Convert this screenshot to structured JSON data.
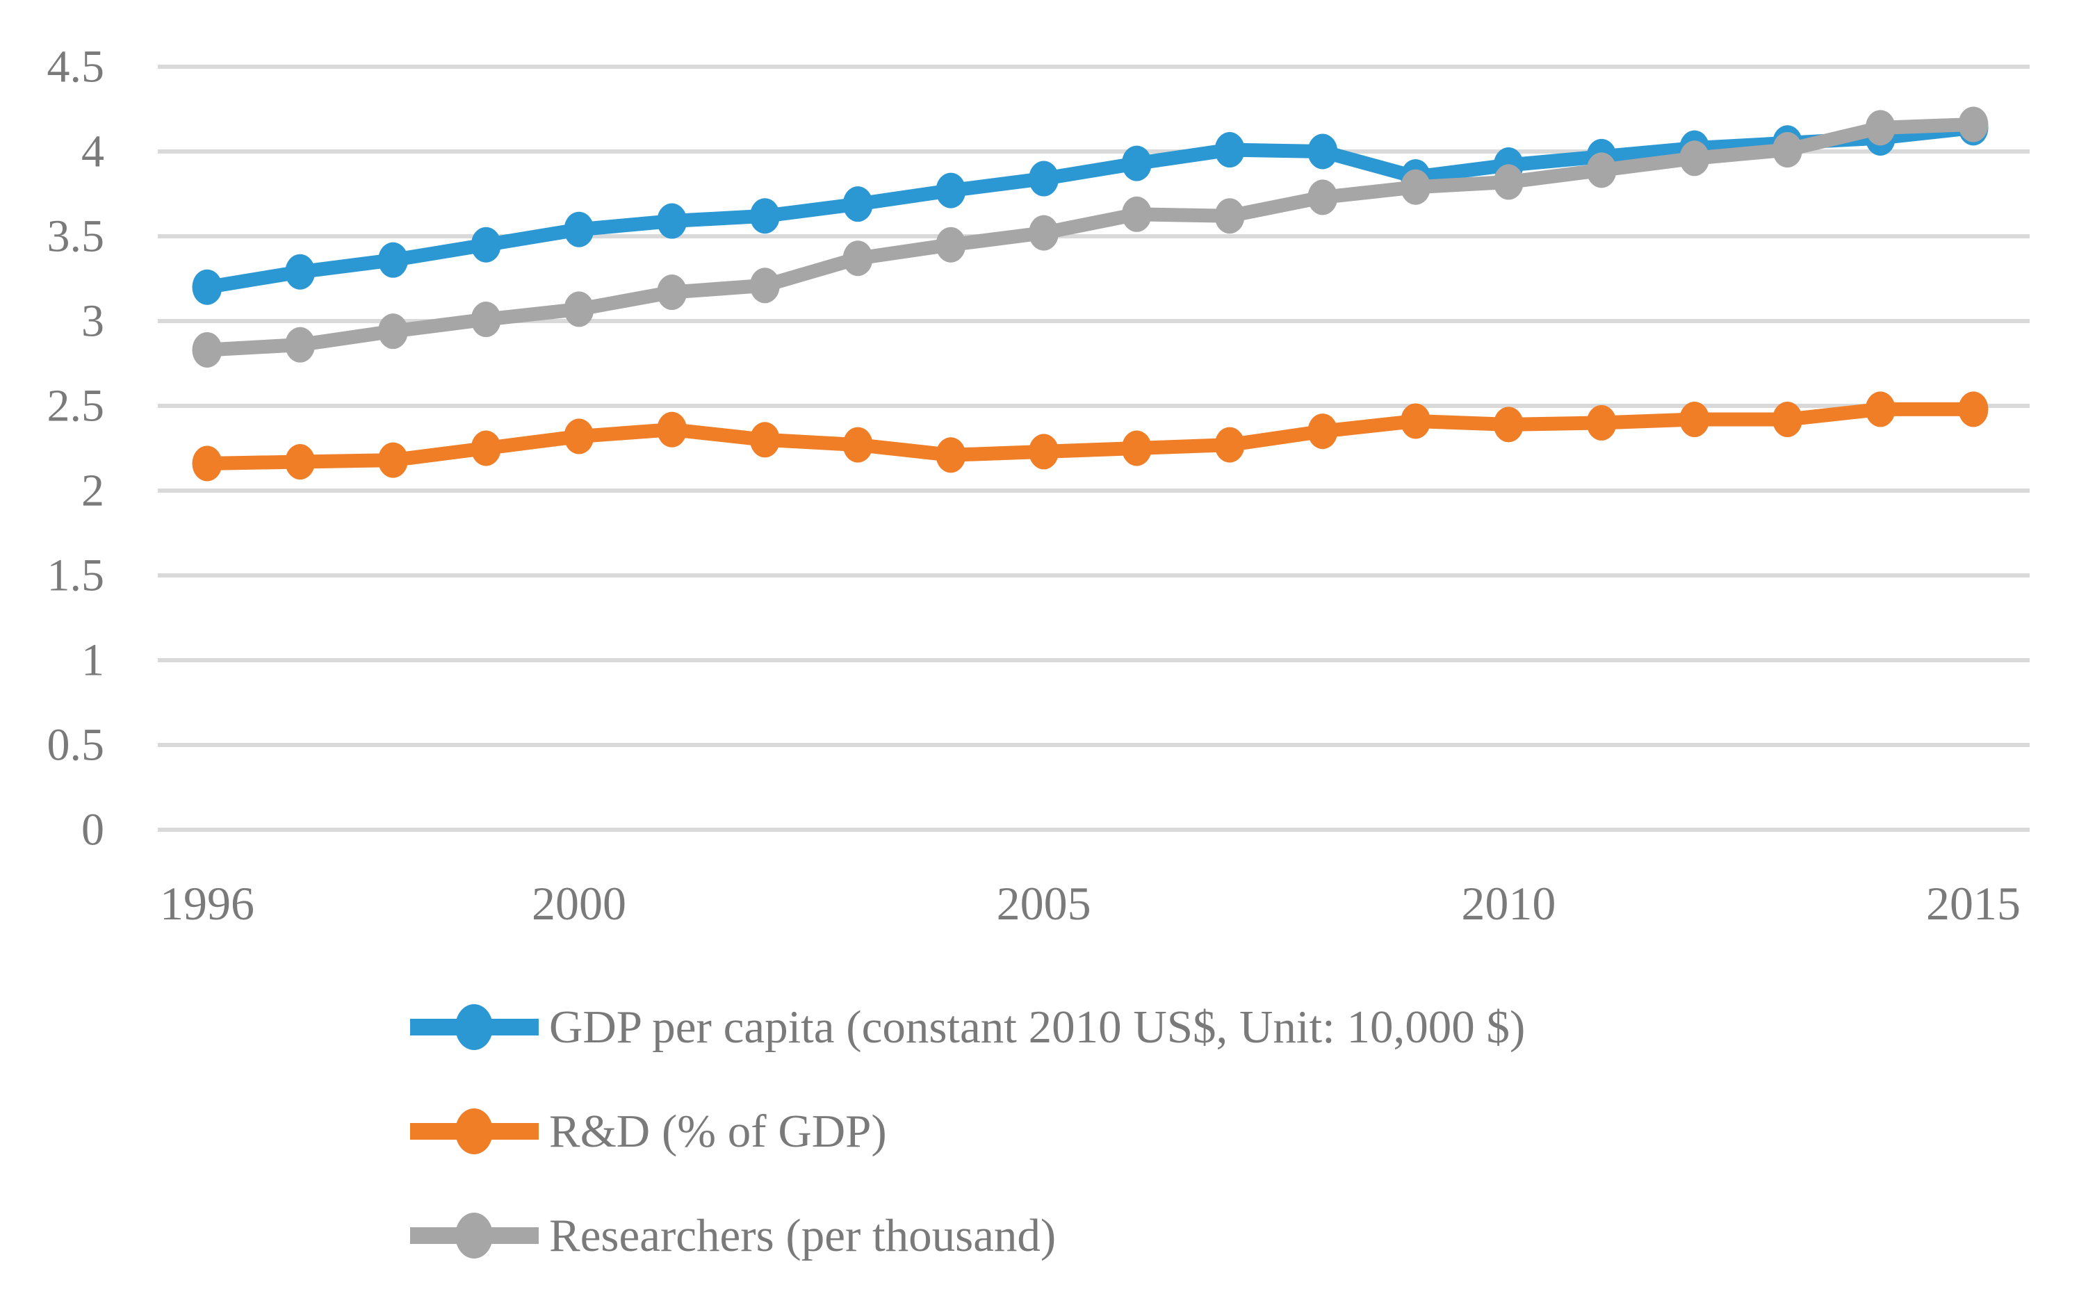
{
  "chart_data": {
    "type": "line",
    "title": "",
    "xlabel": "",
    "ylabel": "",
    "x": [
      1996,
      1997,
      1998,
      1999,
      2000,
      2001,
      2002,
      2003,
      2004,
      2005,
      2006,
      2007,
      2008,
      2009,
      2010,
      2011,
      2012,
      2013,
      2014,
      2015
    ],
    "series": [
      {
        "name": "GDP per capita (constant 2010 US$, Unit: 10,000 $)",
        "color": "#2B97D3",
        "values": [
          3.2,
          3.29,
          3.36,
          3.45,
          3.54,
          3.59,
          3.62,
          3.69,
          3.77,
          3.84,
          3.93,
          4.01,
          4.0,
          3.85,
          3.92,
          3.97,
          4.02,
          4.05,
          4.08,
          4.14
        ]
      },
      {
        "name": "R&D (% of GDP)",
        "color": "#F07E27",
        "values": [
          2.16,
          2.17,
          2.18,
          2.25,
          2.32,
          2.36,
          2.3,
          2.27,
          2.21,
          2.23,
          2.25,
          2.27,
          2.35,
          2.41,
          2.39,
          2.4,
          2.42,
          2.42,
          2.48,
          2.48
        ]
      },
      {
        "name": "Researchers (per thousand)",
        "color": "#A6A6A6",
        "values": [
          2.83,
          2.86,
          2.94,
          3.01,
          3.07,
          3.17,
          3.21,
          3.37,
          3.45,
          3.52,
          3.63,
          3.62,
          3.73,
          3.79,
          3.82,
          3.89,
          3.96,
          4.01,
          4.14,
          4.16
        ]
      }
    ],
    "ylim": [
      0,
      4.5
    ],
    "ytick_values": [
      0,
      0.5,
      1,
      1.5,
      2,
      2.5,
      3,
      3.5,
      4,
      4.5
    ],
    "ytick_labels": [
      "0",
      "0.5",
      "1",
      "1.5",
      "2",
      "2.5",
      "3",
      "3.5",
      "4",
      "4.5"
    ],
    "xtick_years": [
      1996,
      2000,
      2005,
      2010,
      2015
    ],
    "xtick_labels": [
      "1996",
      "2000",
      "2005",
      "2010",
      "2015"
    ],
    "grid": true,
    "legend_position": "bottom-left",
    "gridline_color": "#D9D9D9",
    "axis_text_color": "#7A7A7A",
    "legend_text_color": "#7A7A7A"
  }
}
